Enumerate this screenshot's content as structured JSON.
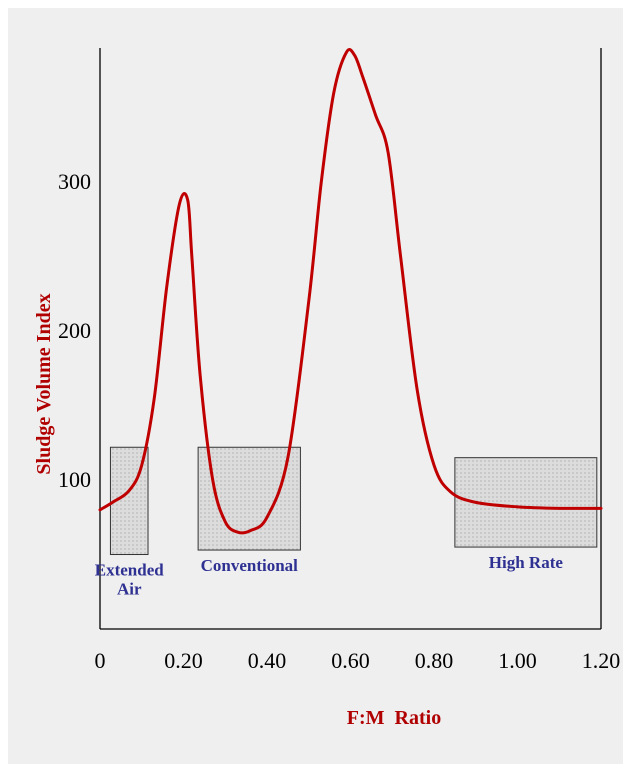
{
  "chart_data": {
    "type": "line",
    "xlabel": "F:M  Ratio",
    "ylabel": "Sludge Volume Index",
    "xlim": [
      0,
      1.2
    ],
    "ylim": [
      0,
      390
    ],
    "x_ticks": [
      "0",
      "0.20",
      "0.40",
      "0.60",
      "0.80",
      "1.00",
      "1.20"
    ],
    "y_ticks": [
      "100",
      "200",
      "300"
    ],
    "grid": false,
    "series": [
      {
        "color": "#c00000",
        "x": [
          0.0,
          0.03,
          0.07,
          0.1,
          0.13,
          0.16,
          0.19,
          0.21,
          0.22,
          0.24,
          0.27,
          0.3,
          0.33,
          0.36,
          0.4,
          0.45,
          0.5,
          0.53,
          0.56,
          0.59,
          0.61,
          0.63,
          0.66,
          0.69,
          0.72,
          0.76,
          0.8,
          0.84,
          0.9,
          1.0,
          1.1,
          1.2
        ],
        "y": [
          80,
          85,
          93,
          110,
          155,
          230,
          285,
          288,
          250,
          170,
          100,
          72,
          65,
          66,
          75,
          115,
          220,
          300,
          360,
          387,
          385,
          370,
          345,
          320,
          250,
          160,
          110,
          92,
          85,
          82,
          81,
          81
        ]
      }
    ],
    "regions": [
      {
        "label": "Extended\nAir",
        "x0": 0.025,
        "x1": 0.115,
        "y0": 50,
        "y1": 122
      },
      {
        "label": "Conventional",
        "x0": 0.235,
        "x1": 0.48,
        "y0": 53,
        "y1": 122
      },
      {
        "label": "High Rate",
        "x0": 0.85,
        "x1": 1.19,
        "y0": 55,
        "y1": 115
      }
    ],
    "region_fill": "#d9d9d9",
    "axis_title_color": "#b00000",
    "region_label_color": "#2e3192"
  }
}
